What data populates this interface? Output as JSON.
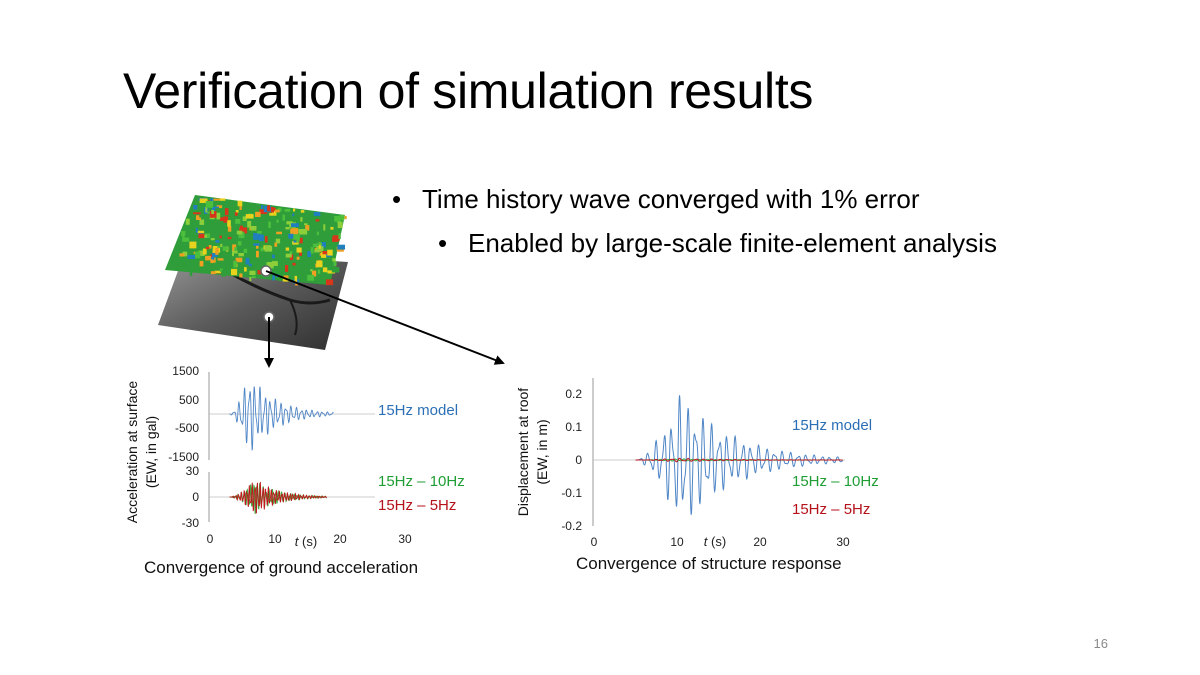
{
  "slide": {
    "title": "Verification of simulation results",
    "bullet1": "Time history wave converged with 1% error",
    "bullet2": "Enabled by large-scale finite-element analysis",
    "bullet_symbol": "•",
    "page_number": "16"
  },
  "colors": {
    "model": "#4f86c6",
    "hz10": "#3cb043",
    "hz5": "#c0161c"
  },
  "chart_data": [
    {
      "type": "line",
      "caption": "Convergence of ground acceleration",
      "ylabel_line1": "Acceleration at surface",
      "ylabel_line2": "(EW, in gal)",
      "xlabel": "t (s)",
      "xticks": [
        "0",
        "10",
        "20",
        "30"
      ],
      "xlim": [
        0,
        30
      ],
      "panels": [
        {
          "yticks": [
            "1500",
            "500",
            "-500",
            "-1500"
          ],
          "ylim": [
            -1500,
            1500
          ],
          "series": [
            {
              "name": "15Hz model",
              "color": "#4f86c6",
              "start": 3,
              "end": 19,
              "peak": 1450,
              "peak_t": 6
            }
          ]
        },
        {
          "yticks": [
            "30",
            "0",
            "-30"
          ],
          "ylim": [
            -30,
            30
          ],
          "series": [
            {
              "name": "15Hz – 10Hz",
              "color": "#3cb043",
              "start": 3,
              "end": 18,
              "peak": 20,
              "peak_t": 7
            },
            {
              "name": "15Hz – 5Hz",
              "color": "#c0161c",
              "start": 3,
              "end": 18,
              "peak": 22,
              "peak_t": 7
            }
          ]
        }
      ]
    },
    {
      "type": "line",
      "caption": "Convergence of structure response",
      "ylabel_line1": "Displacement at roof",
      "ylabel_line2": "(EW, in m)",
      "xlabel": "t (s)",
      "xticks": [
        "0",
        "10",
        "20",
        "30"
      ],
      "xlim": [
        0,
        30
      ],
      "yticks": [
        "0.2",
        "0.1",
        "0",
        "-0.1",
        "-0.2"
      ],
      "ylim": [
        -0.2,
        0.2
      ],
      "series": [
        {
          "name": "15Hz model",
          "color": "#4f86c6",
          "start": 5,
          "end": 30,
          "peak": 0.21,
          "peak_t": 10.5
        },
        {
          "name": "15Hz – 10Hz",
          "color": "#3cb043",
          "start": 5,
          "end": 30,
          "peak": 0.004,
          "peak_t": 10
        },
        {
          "name": "15Hz – 5Hz",
          "color": "#c0161c",
          "start": 5,
          "end": 30,
          "peak": 0.006,
          "peak_t": 10
        }
      ]
    }
  ]
}
